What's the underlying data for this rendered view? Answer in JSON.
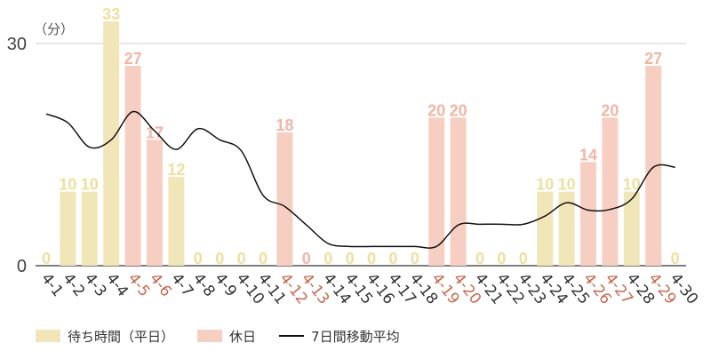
{
  "chart_data": {
    "type": "bar",
    "unit_label": "（分）",
    "yticks": [
      0,
      30
    ],
    "ylim": [
      0,
      33
    ],
    "categories": [
      "4-1",
      "4-2",
      "4-3",
      "4-4",
      "4-5",
      "4-6",
      "4-7",
      "4-8",
      "4-9",
      "4-10",
      "4-11",
      "4-12",
      "4-13",
      "4-14",
      "4-15",
      "4-16",
      "4-17",
      "4-18",
      "4-19",
      "4-20",
      "4-21",
      "4-22",
      "4-23",
      "4-24",
      "4-25",
      "4-26",
      "4-27",
      "4-28",
      "4-29",
      "4-30"
    ],
    "day_type": [
      "weekday",
      "weekday",
      "weekday",
      "weekday",
      "holiday",
      "holiday",
      "weekday",
      "weekday",
      "weekday",
      "weekday",
      "weekday",
      "holiday",
      "holiday",
      "weekday",
      "weekday",
      "weekday",
      "weekday",
      "weekday",
      "holiday",
      "holiday",
      "weekday",
      "weekday",
      "weekday",
      "weekday",
      "weekday",
      "holiday",
      "holiday",
      "weekday",
      "holiday",
      "weekday"
    ],
    "values": [
      0,
      10,
      10,
      33,
      27,
      17,
      12,
      0,
      0,
      0,
      0,
      18,
      0,
      0,
      0,
      0,
      0,
      0,
      20,
      20,
      0,
      0,
      0,
      10,
      10,
      14,
      20,
      10,
      27,
      0
    ],
    "moving_average": [
      20.5,
      19.3,
      16.0,
      17.0,
      20.8,
      18.2,
      15.7,
      18.5,
      17.0,
      15.5,
      9.5,
      8.0,
      5.5,
      3.0,
      2.6,
      2.6,
      2.6,
      2.6,
      2.6,
      5.5,
      5.6,
      5.6,
      5.6,
      6.7,
      8.5,
      7.5,
      7.6,
      9.0,
      13.3,
      13.3
    ],
    "legend": [
      {
        "label": "待ち時間（平日）",
        "kind": "weekday"
      },
      {
        "label": "休日",
        "kind": "holiday"
      },
      {
        "label": "7日間移動平均",
        "kind": "line"
      }
    ],
    "colors": {
      "weekday_bar": "#f0e6b8",
      "holiday_bar": "#f6cfc2",
      "weekday_value": "#efdf9d",
      "holiday_value": "#f2b5a3",
      "weekday_tick": "#333333",
      "holiday_tick": "#c8684f",
      "grid": "#cfcfcf",
      "axis": "#555555",
      "line": "#111111"
    }
  }
}
